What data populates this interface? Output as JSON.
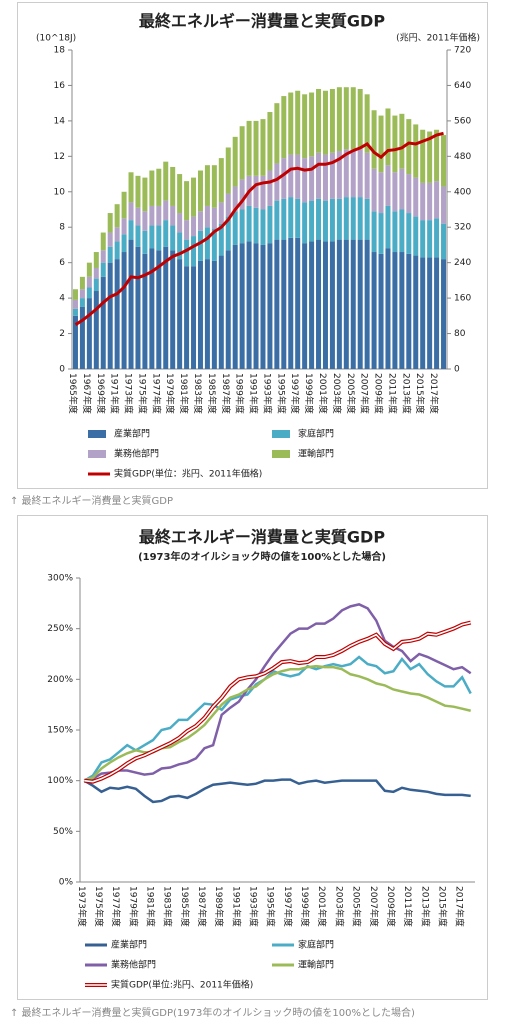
{
  "chart_data": [
    {
      "type": "bar",
      "stacked": true,
      "title": "最終エネルギー消費量と実質GDP",
      "y_label": "(10^18J)",
      "y2_label": "(兆円、2011年価格)",
      "categories": [
        "1965年度",
        null,
        "1967年度",
        null,
        "1969年度",
        null,
        "1971年度",
        null,
        "1973年度",
        null,
        "1975年度",
        null,
        "1977年度",
        null,
        "1979年度",
        null,
        "1981年度",
        null,
        "1983年度",
        null,
        "1985年度",
        null,
        "1987年度",
        null,
        "1989年度",
        null,
        "1991年度",
        null,
        "1993年度",
        null,
        "1995年度",
        null,
        "1997年度",
        null,
        "1999年度",
        null,
        "2001年度",
        null,
        "2003年度",
        null,
        "2005年度",
        null,
        "2007年度",
        null,
        "2009年度",
        null,
        "2011年度",
        null,
        "2013年度",
        null,
        "2015年度",
        null,
        "2017年度",
        null
      ],
      "series": [
        {
          "name": "産業部門",
          "color": "#3a6ea5",
          "values": [
            3.0,
            3.5,
            4.0,
            4.4,
            5.2,
            6.0,
            6.2,
            6.6,
            7.3,
            6.9,
            6.5,
            6.8,
            6.7,
            6.9,
            6.7,
            6.2,
            5.8,
            5.8,
            6.1,
            6.2,
            6.1,
            6.4,
            6.7,
            7.0,
            7.1,
            7.2,
            7.1,
            7.0,
            7.1,
            7.3,
            7.3,
            7.4,
            7.4,
            7.1,
            7.2,
            7.3,
            7.2,
            7.2,
            7.3,
            7.3,
            7.3,
            7.3,
            7.3,
            6.6,
            6.5,
            6.8,
            6.6,
            6.6,
            6.5,
            6.4,
            6.3,
            6.3,
            6.3,
            6.2
          ]
        },
        {
          "name": "家庭部門",
          "color": "#4bacc6",
          "values": [
            0.4,
            0.5,
            0.6,
            0.7,
            0.8,
            0.9,
            1.0,
            1.0,
            1.1,
            1.2,
            1.3,
            1.3,
            1.4,
            1.5,
            1.4,
            1.5,
            1.5,
            1.7,
            1.7,
            1.8,
            1.8,
            1.8,
            1.9,
            1.9,
            1.9,
            2.0,
            2.0,
            2.0,
            2.1,
            2.2,
            2.3,
            2.3,
            2.2,
            2.3,
            2.3,
            2.3,
            2.3,
            2.4,
            2.3,
            2.4,
            2.4,
            2.4,
            2.3,
            2.3,
            2.3,
            2.4,
            2.3,
            2.4,
            2.3,
            2.2,
            2.1,
            2.1,
            2.2,
            2.0
          ]
        },
        {
          "name": "業務他部門",
          "color": "#b3a2c7",
          "values": [
            0.5,
            0.5,
            0.6,
            0.6,
            0.7,
            0.8,
            0.8,
            0.9,
            1.0,
            1.0,
            1.1,
            1.1,
            1.1,
            1.1,
            1.1,
            1.1,
            1.1,
            1.1,
            1.1,
            1.2,
            1.2,
            1.2,
            1.3,
            1.4,
            1.7,
            1.7,
            1.8,
            1.9,
            2.0,
            2.1,
            2.3,
            2.4,
            2.5,
            2.5,
            2.5,
            2.6,
            2.6,
            2.6,
            2.7,
            2.7,
            2.7,
            2.7,
            2.6,
            2.4,
            2.3,
            2.3,
            2.2,
            2.3,
            2.2,
            2.2,
            2.1,
            2.1,
            2.1,
            2.1
          ]
        },
        {
          "name": "運輸部門",
          "color": "#9bbb59",
          "values": [
            0.6,
            0.7,
            0.8,
            0.9,
            1.0,
            1.1,
            1.3,
            1.5,
            1.7,
            1.8,
            1.9,
            2.0,
            2.1,
            2.2,
            2.2,
            2.2,
            2.2,
            2.2,
            2.3,
            2.3,
            2.4,
            2.5,
            2.6,
            2.8,
            3.0,
            3.1,
            3.1,
            3.2,
            3.3,
            3.4,
            3.5,
            3.5,
            3.6,
            3.6,
            3.6,
            3.6,
            3.6,
            3.6,
            3.6,
            3.5,
            3.5,
            3.4,
            3.3,
            3.3,
            3.2,
            3.2,
            3.2,
            3.1,
            3.1,
            3.0,
            3.0,
            2.9,
            2.9,
            2.9
          ]
        },
        {
          "name": "実質GDP(単位：兆円、2011年価格)",
          "color": "#c00000",
          "type": "line",
          "axis": "y2",
          "values": [
            100,
            110,
            122,
            135,
            150,
            163,
            170,
            185,
            208,
            206,
            212,
            220,
            231,
            243,
            254,
            260,
            268,
            277,
            285,
            295,
            310,
            320,
            337,
            360,
            379,
            401,
            416,
            420,
            422,
            428,
            439,
            451,
            453,
            449,
            451,
            462,
            462,
            466,
            474,
            485,
            493,
            499,
            508,
            489,
            478,
            493,
            495,
            499,
            510,
            508,
            514,
            520,
            528,
            532
          ]
        }
      ],
      "ylim": [
        0,
        18
      ],
      "yticks": [
        0,
        2,
        4,
        6,
        8,
        10,
        12,
        14,
        16,
        18
      ],
      "y2lim": [
        0,
        720
      ],
      "y2ticks": [
        0,
        80,
        160,
        240,
        320,
        400,
        480,
        560,
        640,
        720
      ],
      "grid": false
    },
    {
      "type": "line",
      "title": "最終エネルギー消費量と実質GDP",
      "subtitle": "(1973年のオイルショック時の値を100%とした場合)",
      "categories": [
        "1973年度",
        null,
        "1975年度",
        null,
        "1977年度",
        null,
        "1979年度",
        null,
        "1981年度",
        null,
        "1983年度",
        null,
        "1985年度",
        null,
        "1987年度",
        null,
        "1989年度",
        null,
        "1991年度",
        null,
        "1993年度",
        null,
        "1995年度",
        null,
        "1997年度",
        null,
        "1999年度",
        null,
        "2001年度",
        null,
        "2003年度",
        null,
        "2005年度",
        null,
        "2007年度",
        null,
        "2009年度",
        null,
        "2011年度",
        null,
        "2013年度",
        null,
        "2015年度",
        null,
        "2017年度",
        null
      ],
      "series": [
        {
          "name": "産業部門",
          "color": "#376092",
          "values": [
            100,
            95,
            89,
            93,
            92,
            94,
            92,
            85,
            79,
            80,
            84,
            85,
            83,
            87,
            92,
            96,
            97,
            98,
            97,
            96,
            97,
            100,
            100,
            101,
            101,
            97,
            99,
            100,
            98,
            99,
            100,
            100,
            100,
            100,
            100,
            90,
            89,
            93,
            91,
            90,
            89,
            87,
            86,
            86,
            86,
            85
          ]
        },
        {
          "name": "家庭部門",
          "color": "#4bacc6",
          "values": [
            100,
            105,
            118,
            121,
            128,
            135,
            130,
            135,
            140,
            150,
            152,
            160,
            160,
            168,
            176,
            175,
            170,
            180,
            183,
            185,
            195,
            200,
            208,
            205,
            203,
            205,
            213,
            210,
            213,
            215,
            213,
            215,
            222,
            215,
            213,
            206,
            208,
            220,
            210,
            215,
            205,
            198,
            193,
            193,
            202,
            186
          ]
        },
        {
          "name": "業務他部門",
          "color": "#7f5fa8",
          "values": [
            100,
            102,
            107,
            108,
            110,
            110,
            108,
            106,
            107,
            112,
            113,
            116,
            118,
            122,
            132,
            135,
            165,
            172,
            178,
            190,
            200,
            213,
            225,
            235,
            245,
            250,
            250,
            255,
            255,
            260,
            268,
            272,
            274,
            270,
            258,
            238,
            232,
            228,
            218,
            225,
            222,
            218,
            214,
            210,
            212,
            206
          ]
        },
        {
          "name": "運輸部門",
          "color": "#9bbb59",
          "values": [
            100,
            103,
            112,
            118,
            123,
            127,
            130,
            128,
            128,
            132,
            133,
            138,
            142,
            148,
            155,
            165,
            175,
            182,
            185,
            190,
            193,
            200,
            205,
            208,
            210,
            210,
            212,
            213,
            212,
            212,
            210,
            205,
            203,
            200,
            196,
            194,
            190,
            188,
            186,
            185,
            182,
            178,
            174,
            173,
            171,
            169
          ]
        },
        {
          "name": "実質GDP(単位:兆円、2011年価格)",
          "color": "#c00000",
          "double": true,
          "values": [
            100,
            99,
            102,
            106,
            111,
            117,
            122,
            125,
            129,
            133,
            137,
            142,
            149,
            154,
            162,
            173,
            182,
            193,
            200,
            202,
            203,
            206,
            211,
            217,
            218,
            216,
            217,
            222,
            222,
            224,
            228,
            233,
            237,
            240,
            244,
            235,
            230,
            237,
            238,
            240,
            245,
            244,
            247,
            250,
            254,
            256
          ]
        }
      ],
      "ylim": [
        0,
        300
      ],
      "yticks": [
        {
          "value": 0,
          "label": "0%"
        },
        {
          "value": 50,
          "label": "50%"
        },
        {
          "value": 100,
          "label": "100%"
        },
        {
          "value": 150,
          "label": "150%"
        },
        {
          "value": 200,
          "label": "200%"
        },
        {
          "value": 250,
          "label": "250%"
        },
        {
          "value": 300,
          "label": "300%"
        }
      ],
      "grid": false
    }
  ],
  "captions": [
    "↑ 最終エネルギー消費量と実質GDP",
    "↑ 最終エネルギー消費量と実質GDP(1973年のオイルショック時の値を100%とした場合)"
  ]
}
